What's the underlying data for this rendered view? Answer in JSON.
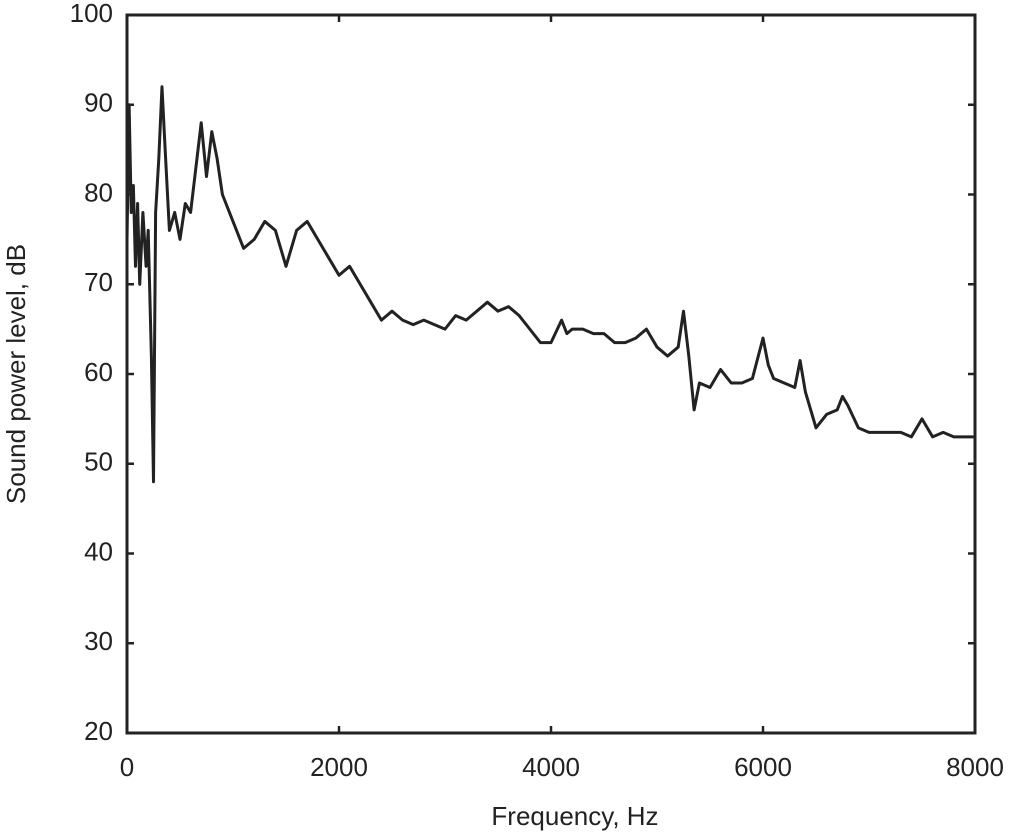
{
  "chart_data": {
    "type": "line",
    "xlabel": "Frequency, Hz",
    "ylabel": "Sound power level, dB",
    "x": [
      0,
      20,
      40,
      60,
      80,
      100,
      120,
      150,
      180,
      200,
      230,
      250,
      270,
      300,
      330,
      360,
      400,
      450,
      500,
      550,
      600,
      650,
      700,
      750,
      800,
      850,
      900,
      1000,
      1100,
      1200,
      1300,
      1400,
      1500,
      1600,
      1700,
      1800,
      1900,
      2000,
      2100,
      2200,
      2300,
      2400,
      2500,
      2600,
      2700,
      2800,
      2900,
      3000,
      3100,
      3200,
      3300,
      3400,
      3500,
      3600,
      3700,
      3800,
      3900,
      4000,
      4100,
      4150,
      4200,
      4300,
      4400,
      4500,
      4600,
      4700,
      4800,
      4900,
      5000,
      5100,
      5200,
      5250,
      5300,
      5350,
      5400,
      5500,
      5600,
      5700,
      5800,
      5900,
      6000,
      6050,
      6100,
      6200,
      6300,
      6350,
      6400,
      6500,
      6600,
      6700,
      6750,
      6800,
      6900,
      7000,
      7100,
      7200,
      7300,
      7400,
      7500,
      7600,
      7700,
      7800,
      7900,
      8000
    ],
    "series": [
      {
        "color": "#222222",
        "values": [
          75,
          90,
          78,
          81,
          72,
          79,
          70,
          78,
          72,
          76,
          62,
          48,
          78,
          84,
          92,
          85,
          76,
          78,
          75,
          79,
          78,
          83,
          88,
          82,
          87,
          84,
          80,
          77,
          74,
          75,
          77,
          76,
          72,
          76,
          77,
          75,
          73,
          71,
          72,
          70,
          68,
          66,
          67,
          66,
          65.5,
          66,
          65.5,
          65,
          66.5,
          66,
          67,
          68,
          67,
          67.5,
          66.5,
          65,
          63.5,
          63.5,
          66,
          64.5,
          65,
          65,
          64.5,
          64.5,
          63.5,
          63.5,
          64,
          65,
          63,
          62,
          63,
          67,
          62,
          56,
          59,
          58.5,
          60.5,
          59,
          59,
          59.5,
          64,
          61,
          59.5,
          59,
          58.5,
          61.5,
          58,
          54,
          55.5,
          56,
          57.5,
          56.5,
          54,
          53.5,
          53.5,
          53.5,
          53.5,
          53,
          55,
          53,
          53.5,
          53,
          53,
          53
        ]
      }
    ],
    "xlim": [
      0,
      8000
    ],
    "xticks": [
      0,
      2000,
      4000,
      6000,
      8000
    ],
    "ylim": [
      20,
      100
    ],
    "yticks": [
      20,
      30,
      40,
      50,
      60,
      70,
      80,
      90,
      100
    ]
  }
}
